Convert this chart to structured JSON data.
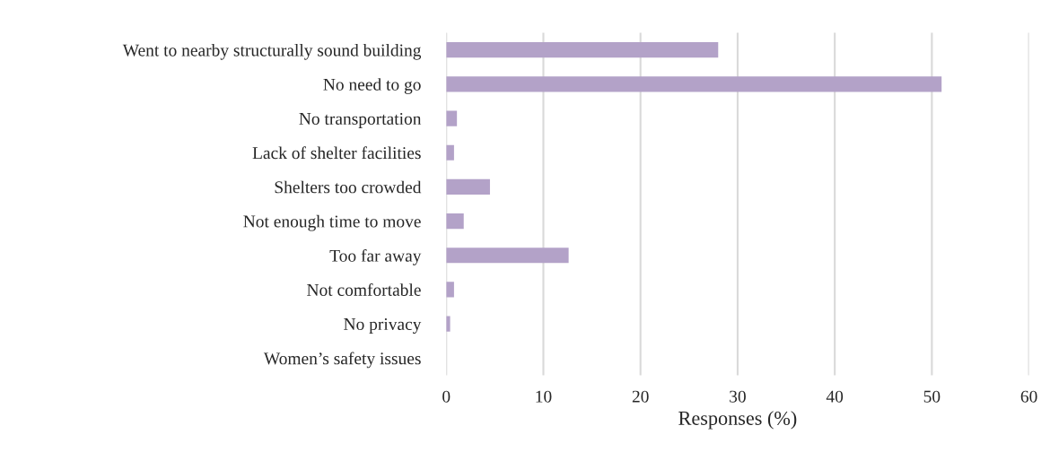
{
  "chart_data": {
    "type": "bar",
    "orientation": "horizontal",
    "xlabel": "Responses (%)",
    "categories": [
      "Went to nearby structurally sound building",
      "No need to go",
      "No transportation",
      "Lack of shelter facilities",
      "Shelters too crowded",
      "Not enough time to move",
      "Too far away",
      "Not comfortable",
      "No privacy",
      "Women’s safety issues"
    ],
    "values": [
      28,
      51,
      1.1,
      0.8,
      4.5,
      1.8,
      12.6,
      0.8,
      0.4,
      0
    ],
    "color": "#b3a2c8",
    "xlim": [
      0,
      60
    ],
    "xticks": [
      0,
      10,
      20,
      30,
      40,
      50,
      60
    ],
    "grid": "x"
  }
}
